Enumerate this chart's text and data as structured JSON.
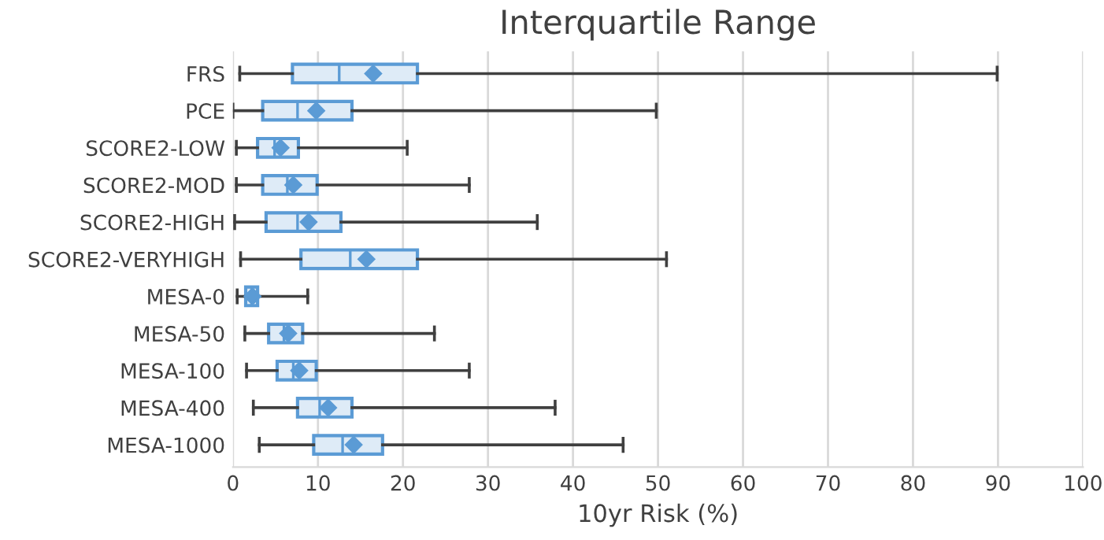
{
  "chart_data": {
    "type": "box",
    "orientation": "horizontal",
    "title": "Interquartile Range",
    "xlabel": "10yr Risk (%)",
    "categories": [
      "FRS",
      "PCE",
      "SCORE2-LOW",
      "SCORE2-MOD",
      "SCORE2-HIGH",
      "SCORE2-VERYHIGH",
      "MESA-0",
      "MESA-50",
      "MESA-100",
      "MESA-400",
      "MESA-1000"
    ],
    "boxes": [
      {
        "low": 0.8,
        "q1": 7.0,
        "median": 12.5,
        "q3": 21.7,
        "high": 89.9,
        "mean": 16.5
      },
      {
        "low": 0.0,
        "q1": 3.5,
        "median": 7.6,
        "q3": 14.0,
        "high": 49.8,
        "mean": 9.8
      },
      {
        "low": 0.4,
        "q1": 2.9,
        "median": 4.9,
        "q3": 7.7,
        "high": 20.5,
        "mean": 5.6
      },
      {
        "low": 0.4,
        "q1": 3.5,
        "median": 6.4,
        "q3": 9.9,
        "high": 27.8,
        "mean": 7.1
      },
      {
        "low": 0.2,
        "q1": 3.9,
        "median": 7.6,
        "q3": 12.7,
        "high": 35.8,
        "mean": 8.9
      },
      {
        "low": 0.9,
        "q1": 8.0,
        "median": 13.8,
        "q3": 21.7,
        "high": 51.0,
        "mean": 15.7
      },
      {
        "low": 0.5,
        "q1": 1.5,
        "median": 2.2,
        "q3": 2.9,
        "high": 8.8,
        "mean": 2.3
      },
      {
        "low": 1.4,
        "q1": 4.2,
        "median": 6.0,
        "q3": 8.2,
        "high": 23.7,
        "mean": 6.5
      },
      {
        "low": 1.6,
        "q1": 5.2,
        "median": 7.1,
        "q3": 9.8,
        "high": 27.8,
        "mean": 7.8
      },
      {
        "low": 2.4,
        "q1": 7.6,
        "median": 10.2,
        "q3": 14.0,
        "high": 37.9,
        "mean": 11.2
      },
      {
        "low": 3.1,
        "q1": 9.5,
        "median": 12.9,
        "q3": 17.6,
        "high": 45.9,
        "mean": 14.2
      }
    ],
    "color": "#5b9bd5",
    "xlim": [
      0,
      100
    ],
    "xticks": [
      0,
      10,
      20,
      30,
      40,
      50,
      60,
      70,
      80,
      90,
      100
    ],
    "grid": "x",
    "marker": "diamond"
  }
}
